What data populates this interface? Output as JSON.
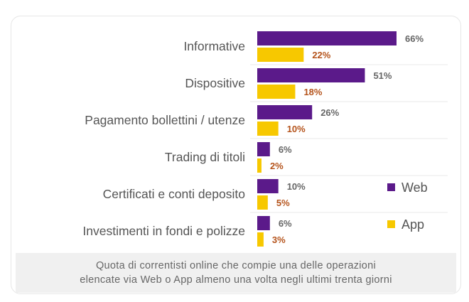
{
  "chart_data": {
    "type": "bar",
    "orientation": "horizontal",
    "categories": [
      "Informative",
      "Dispositive",
      "Pagamento bollettini / utenze",
      "Trading di titoli",
      "Certificati  e conti deposito",
      "Investimenti in fondi e polizze"
    ],
    "series": [
      {
        "name": "Web",
        "values": [
          66,
          51,
          26,
          6,
          10,
          6
        ],
        "color": "#5b1a8a",
        "label_color": "#666666"
      },
      {
        "name": "App",
        "values": [
          22,
          18,
          10,
          2,
          5,
          3
        ],
        "color": "#f7c800",
        "label_color": "#b5541c"
      }
    ],
    "value_suffix": "%",
    "legend_position": "right",
    "grid": false,
    "caption": [
      "Quota di correntisti online che compie una delle operazioni",
      "elencate via Web o App almeno una volta negli ultimi trenta giorni"
    ]
  }
}
